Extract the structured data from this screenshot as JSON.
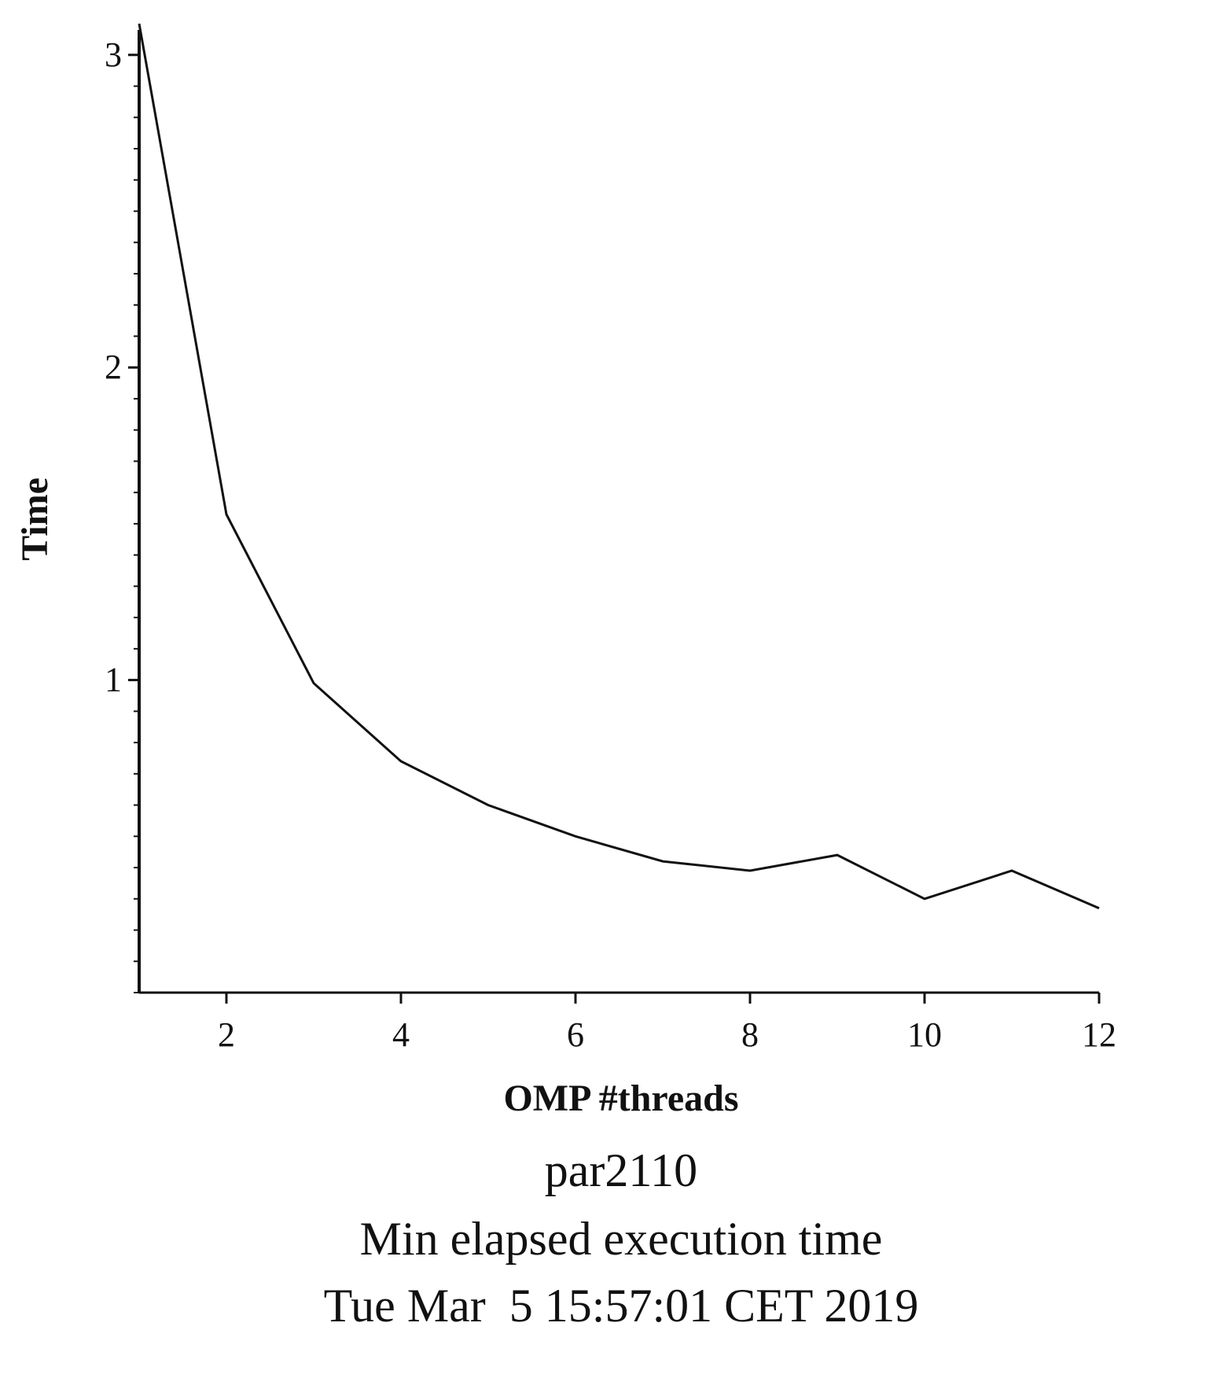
{
  "chart_data": {
    "type": "line",
    "title": "",
    "xlabel": "OMP #threads",
    "ylabel": "Time",
    "xlim": [
      1,
      12
    ],
    "ylim": [
      0.0,
      3.08
    ],
    "x_ticks": [
      2,
      4,
      6,
      8,
      10,
      12
    ],
    "y_ticks": [
      1,
      2,
      3
    ],
    "y_minor_step": 0.1,
    "grid": false,
    "legend": "none",
    "line_color": "#111111",
    "series": [
      {
        "x": [
          1,
          2,
          3,
          4,
          5,
          6,
          7,
          8,
          9,
          10,
          11,
          12
        ],
        "values": [
          3.1,
          1.53,
          0.99,
          0.74,
          0.6,
          0.5,
          0.42,
          0.39,
          0.44,
          0.3,
          0.39,
          0.27
        ]
      }
    ]
  },
  "caption": {
    "line1": "par2110",
    "line2": "Min elapsed execution time",
    "line3": "Tue Mar  5 15:57:01 CET 2019"
  }
}
